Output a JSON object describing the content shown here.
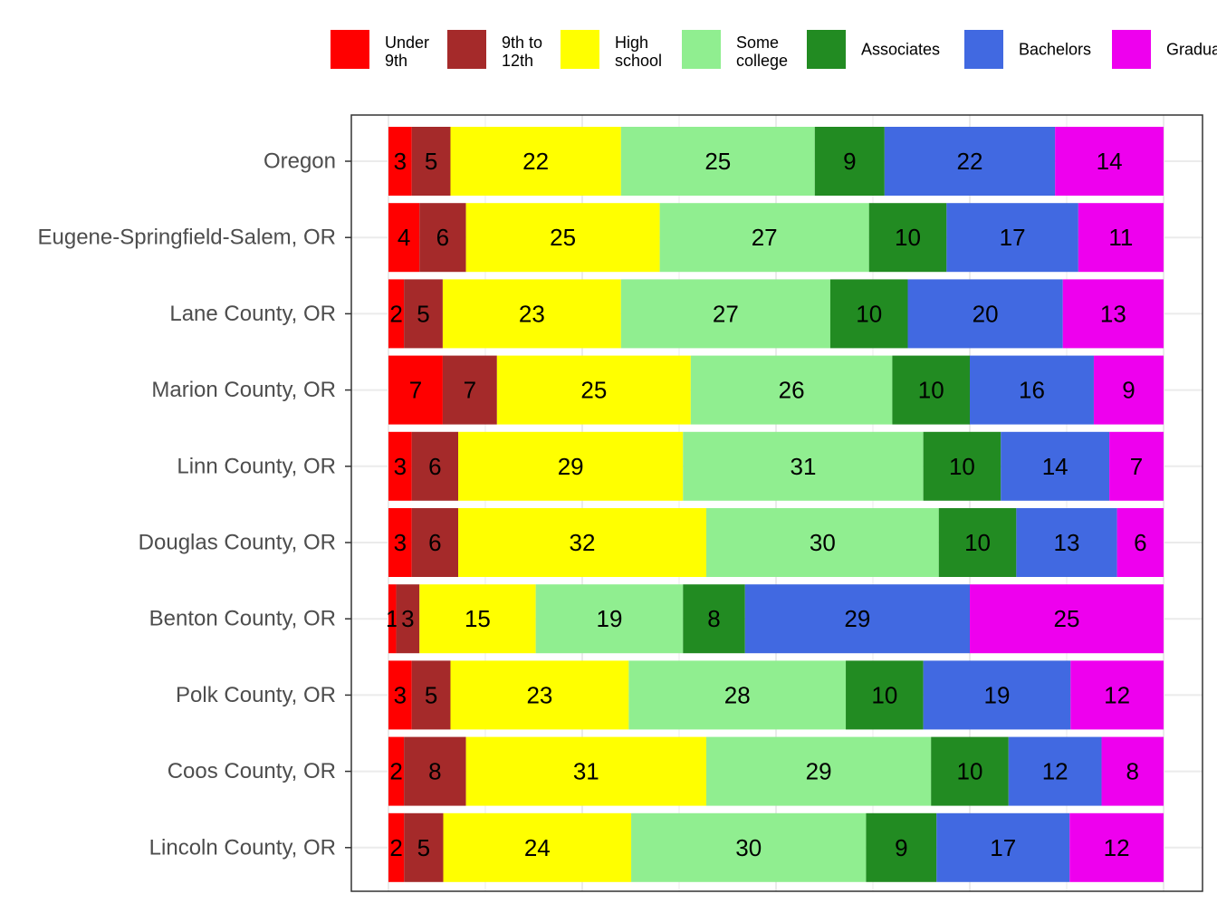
{
  "chart_data": {
    "type": "bar",
    "orientation": "horizontal",
    "stacked": true,
    "normalized": true,
    "title": "",
    "xlabel": "",
    "ylabel": "",
    "xlim": [
      0,
      100
    ],
    "grid": true,
    "legend_position": "top",
    "categories": [
      "Oregon",
      "Eugene-Springfield-Salem, OR",
      "Lane County, OR",
      "Marion County, OR",
      "Linn County, OR",
      "Douglas County, OR",
      "Benton County, OR",
      "Polk County, OR",
      "Coos County, OR",
      "Lincoln County, OR"
    ],
    "series": [
      {
        "name": "Under 9th",
        "legend_lines": [
          "Under",
          "9th"
        ],
        "color": "#FF0000",
        "values": [
          3,
          4,
          2,
          7,
          3,
          3,
          1,
          3,
          2,
          2
        ]
      },
      {
        "name": "9th to 12th",
        "legend_lines": [
          "9th to",
          "12th"
        ],
        "color": "#A52A2A",
        "values": [
          5,
          6,
          5,
          7,
          6,
          6,
          3,
          5,
          8,
          5
        ]
      },
      {
        "name": "High school",
        "legend_lines": [
          "High",
          "school"
        ],
        "color": "#FFFF00",
        "values": [
          22,
          25,
          23,
          25,
          29,
          32,
          15,
          23,
          31,
          24
        ]
      },
      {
        "name": "Some college",
        "legend_lines": [
          "Some",
          "college"
        ],
        "color": "#90EE90",
        "values": [
          25,
          27,
          27,
          26,
          31,
          30,
          19,
          28,
          29,
          30
        ]
      },
      {
        "name": "Associates",
        "legend_lines": [
          "Associates"
        ],
        "color": "#228B22",
        "values": [
          9,
          10,
          10,
          10,
          10,
          10,
          8,
          10,
          10,
          9
        ]
      },
      {
        "name": "Bachelors",
        "legend_lines": [
          "Bachelors"
        ],
        "color": "#4169E1",
        "values": [
          22,
          17,
          20,
          16,
          14,
          13,
          29,
          19,
          12,
          17
        ]
      },
      {
        "name": "Graduate",
        "legend_lines": [
          "Graduate"
        ],
        "color": "#EE00EE",
        "values": [
          14,
          11,
          13,
          9,
          7,
          6,
          25,
          12,
          8,
          12
        ]
      }
    ]
  }
}
